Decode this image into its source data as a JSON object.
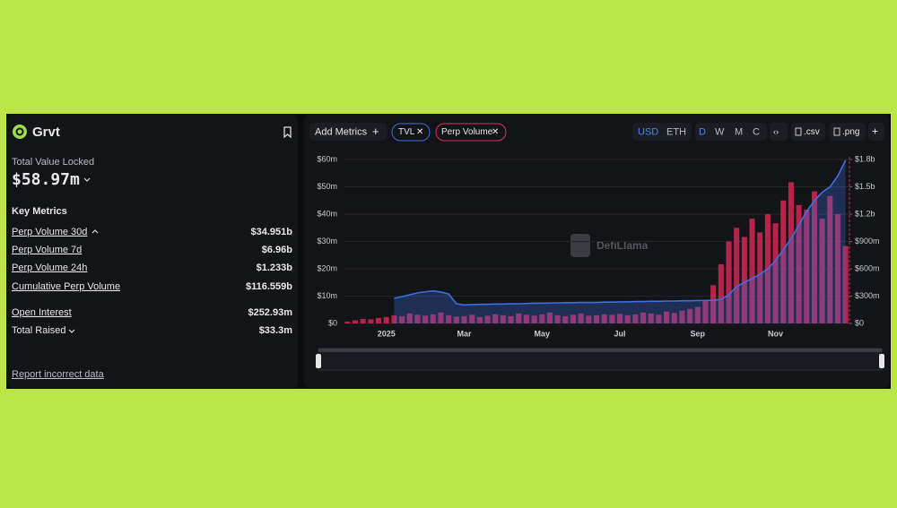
{
  "header": {
    "name": "Grvt"
  },
  "tvl": {
    "label": "Total Value Locked",
    "value": "$58.97m"
  },
  "key_metrics": {
    "title": "Key Metrics",
    "rows": [
      [
        "Perp Volume 30d",
        "$34.951b"
      ],
      [
        "Perp Volume 7d",
        "$6.96b"
      ],
      [
        "Perp Volume 24h",
        "$1.233b"
      ],
      [
        "Cumulative Perp Volume",
        "$116.559b"
      ],
      [
        "Open Interest",
        "$252.93m"
      ],
      [
        "Total Raised",
        "$33.3m"
      ]
    ]
  },
  "report": "Report incorrect data",
  "toolbar": {
    "add_metrics": "Add Metrics",
    "currencies": [
      "USD",
      "ETH"
    ],
    "intervals": [
      "D",
      "W",
      "M",
      "C"
    ],
    "exports": [
      ".csv",
      ".png"
    ]
  },
  "chart_data": {
    "type": "combo",
    "watermark": "DefiLlama",
    "categories": [
      null,
      null,
      null,
      null,
      null,
      "2025",
      null,
      null,
      null,
      null,
      null,
      null,
      null,
      null,
      null,
      "Mar",
      null,
      null,
      null,
      null,
      null,
      null,
      null,
      null,
      null,
      "May",
      null,
      null,
      null,
      null,
      null,
      null,
      null,
      null,
      null,
      "Jul",
      null,
      null,
      null,
      null,
      null,
      null,
      null,
      null,
      null,
      "Sep",
      null,
      null,
      null,
      null,
      null,
      null,
      null,
      null,
      null,
      "Nov",
      null,
      null,
      null,
      null,
      null,
      null,
      null,
      null,
      null
    ],
    "series": [
      {
        "name": "TVL",
        "type": "line",
        "color": "#3d6fe0",
        "axis": "y",
        "values": [
          null,
          null,
          null,
          null,
          null,
          null,
          9.2,
          9.8,
          10.5,
          11.2,
          11.6,
          11.9,
          11.5,
          10.8,
          7.2,
          6.8,
          6.9,
          7.0,
          7.0,
          7.1,
          7.1,
          7.2,
          7.2,
          7.3,
          7.4,
          7.4,
          7.5,
          7.5,
          7.6,
          7.6,
          7.7,
          7.7,
          7.7,
          7.8,
          7.8,
          7.9,
          7.9,
          8.0,
          8.0,
          8.1,
          8.1,
          8.2,
          8.2,
          8.3,
          8.3,
          8.4,
          8.4,
          8.5,
          8.8,
          10.5,
          13.5,
          15,
          16.5,
          18,
          20,
          23,
          27,
          31,
          36,
          41,
          45,
          48,
          50,
          54,
          59.7
        ]
      },
      {
        "name": "Perp Volume",
        "type": "bar",
        "color": "#c8264f",
        "axis": "y2",
        "values": [
          20,
          35,
          50,
          45,
          60,
          70,
          90,
          80,
          110,
          95,
          85,
          100,
          120,
          90,
          75,
          80,
          95,
          70,
          85,
          100,
          90,
          80,
          110,
          95,
          85,
          100,
          120,
          90,
          80,
          95,
          110,
          85,
          90,
          100,
          95,
          105,
          90,
          100,
          120,
          110,
          95,
          130,
          115,
          140,
          160,
          180,
          250,
          420,
          650,
          900,
          1050,
          950,
          1150,
          1000,
          1200,
          1100,
          1350,
          1550,
          1300,
          1250,
          1450,
          1150,
          1400,
          1200,
          850
        ]
      }
    ],
    "ylim": [
      0,
      61
    ],
    "yticks": [
      {
        "value": 0,
        "label": "$0"
      },
      {
        "value": 10,
        "label": "$10m"
      },
      {
        "value": 20,
        "label": "$20m"
      },
      {
        "value": 30,
        "label": "$30m"
      },
      {
        "value": 40,
        "label": "$40m"
      },
      {
        "value": 50,
        "label": "$50m"
      },
      {
        "value": 60,
        "label": "$60m"
      }
    ],
    "y2lim": [
      0,
      1830
    ],
    "y2ticks": [
      {
        "value": 0,
        "label": "$0"
      },
      {
        "value": 300,
        "label": "$300m"
      },
      {
        "value": 600,
        "label": "$600m"
      },
      {
        "value": 900,
        "label": "$900m"
      },
      {
        "value": 1200,
        "label": "$1.2b"
      },
      {
        "value": 1500,
        "label": "$1.5b"
      },
      {
        "value": 1800,
        "label": "$1.8b"
      }
    ]
  }
}
